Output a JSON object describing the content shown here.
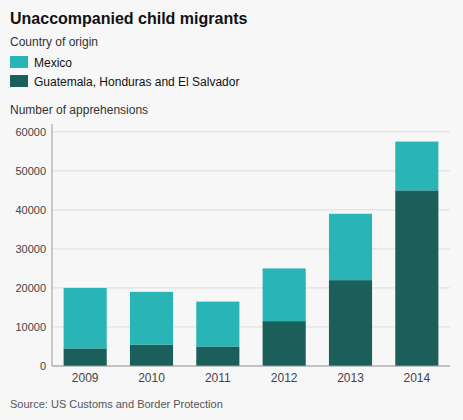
{
  "chart_data": {
    "type": "bar",
    "stacked": true,
    "title": "Unaccompanied child migrants",
    "legend_title": "Country of origin",
    "y_label": "Number of apprehensions",
    "source": "Source: US Customs and Border Protection",
    "categories": [
      "2009",
      "2010",
      "2011",
      "2012",
      "2013",
      "2014"
    ],
    "series": [
      {
        "name": "Guatemala, Honduras and El Salvador",
        "color": "#1a5f5a",
        "values": [
          4500,
          5500,
          5000,
          11500,
          22000,
          45000
        ]
      },
      {
        "name": "Mexico",
        "color": "#29b5b5",
        "values": [
          15500,
          13500,
          11500,
          13500,
          17000,
          12500
        ]
      }
    ],
    "ylim": [
      0,
      62000
    ],
    "yticks": [
      0,
      10000,
      20000,
      30000,
      40000,
      50000,
      60000
    ],
    "grid": true,
    "legend": "top"
  }
}
